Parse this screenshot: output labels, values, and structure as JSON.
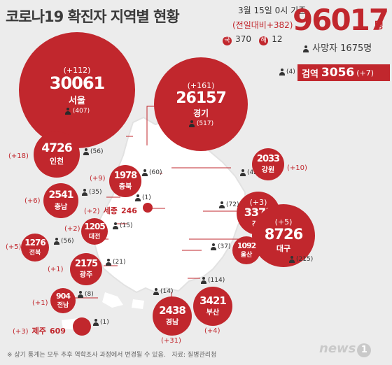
{
  "header": {
    "title": "코로나19 확진자 지역별 현황",
    "date": "3월 15일 0시 기준",
    "daily_change": "(전일대비+382)",
    "domestic_tag": "국",
    "domestic": "370",
    "overseas_tag": "해",
    "overseas": "12",
    "total": "96017",
    "total_unit": "명",
    "death_label": "사망자 1675명"
  },
  "quarantine": {
    "deaths": "(4)",
    "label": "검역",
    "value": "3056",
    "change": "(+7)"
  },
  "regions": {
    "seoul": {
      "name": "서울",
      "value": "30061",
      "change": "(+112)",
      "deaths": "(407)"
    },
    "gyeonggi": {
      "name": "경기",
      "value": "26157",
      "change": "(+161)",
      "deaths": "(517)"
    },
    "incheon": {
      "name": "인천",
      "value": "4726",
      "change": "(+18)",
      "deaths": "(56)"
    },
    "gangwon": {
      "name": "강원",
      "value": "2033",
      "change": "(+10)",
      "deaths": "(42)"
    },
    "chungbuk": {
      "name": "충북",
      "value": "1978",
      "change": "(+9)",
      "deaths": "(60)"
    },
    "chungnam": {
      "name": "충남",
      "value": "2541",
      "change": "(+6)",
      "deaths": "(35)"
    },
    "sejong": {
      "name": "세종",
      "value": "246",
      "change": "(+2)",
      "deaths": "(1)"
    },
    "daejeon": {
      "name": "대전",
      "value": "1205",
      "change": "(+2)",
      "deaths": "(15)"
    },
    "gyeongbuk": {
      "name": "경북",
      "value": "3373",
      "change": "(+3)",
      "deaths": "(72)"
    },
    "daegu": {
      "name": "대구",
      "value": "8726",
      "change": "(+5)",
      "deaths": "(215)"
    },
    "jeonbuk": {
      "name": "전북",
      "value": "1276",
      "change": "(+5)",
      "deaths": "(56)"
    },
    "ulsan": {
      "name": "울산",
      "value": "1092",
      "change": "",
      "deaths": "(37)"
    },
    "gwangju": {
      "name": "광주",
      "value": "2175",
      "change": "(+1)",
      "deaths": "(21)"
    },
    "jeonnam": {
      "name": "전남",
      "value": "904",
      "change": "(+1)",
      "deaths": "(8)"
    },
    "gyeongnam": {
      "name": "경남",
      "value": "2438",
      "change": "(+31)",
      "deaths": "(14)"
    },
    "busan": {
      "name": "부산",
      "value": "3421",
      "change": "(+4)",
      "deaths": "(114)"
    },
    "jeju": {
      "name": "제주",
      "value": "609",
      "change": "(+3)",
      "deaths": "(1)"
    }
  },
  "footer": {
    "note": "※ 상기 통계는 모두 추후 역학조사 과정에서 변경될 수 있음.",
    "source": "자료: 질병관리청",
    "logo": "news",
    "logo_num": "1"
  },
  "colors": {
    "accent": "#c1272d",
    "map": "#ffffff",
    "background": "#ececec"
  }
}
